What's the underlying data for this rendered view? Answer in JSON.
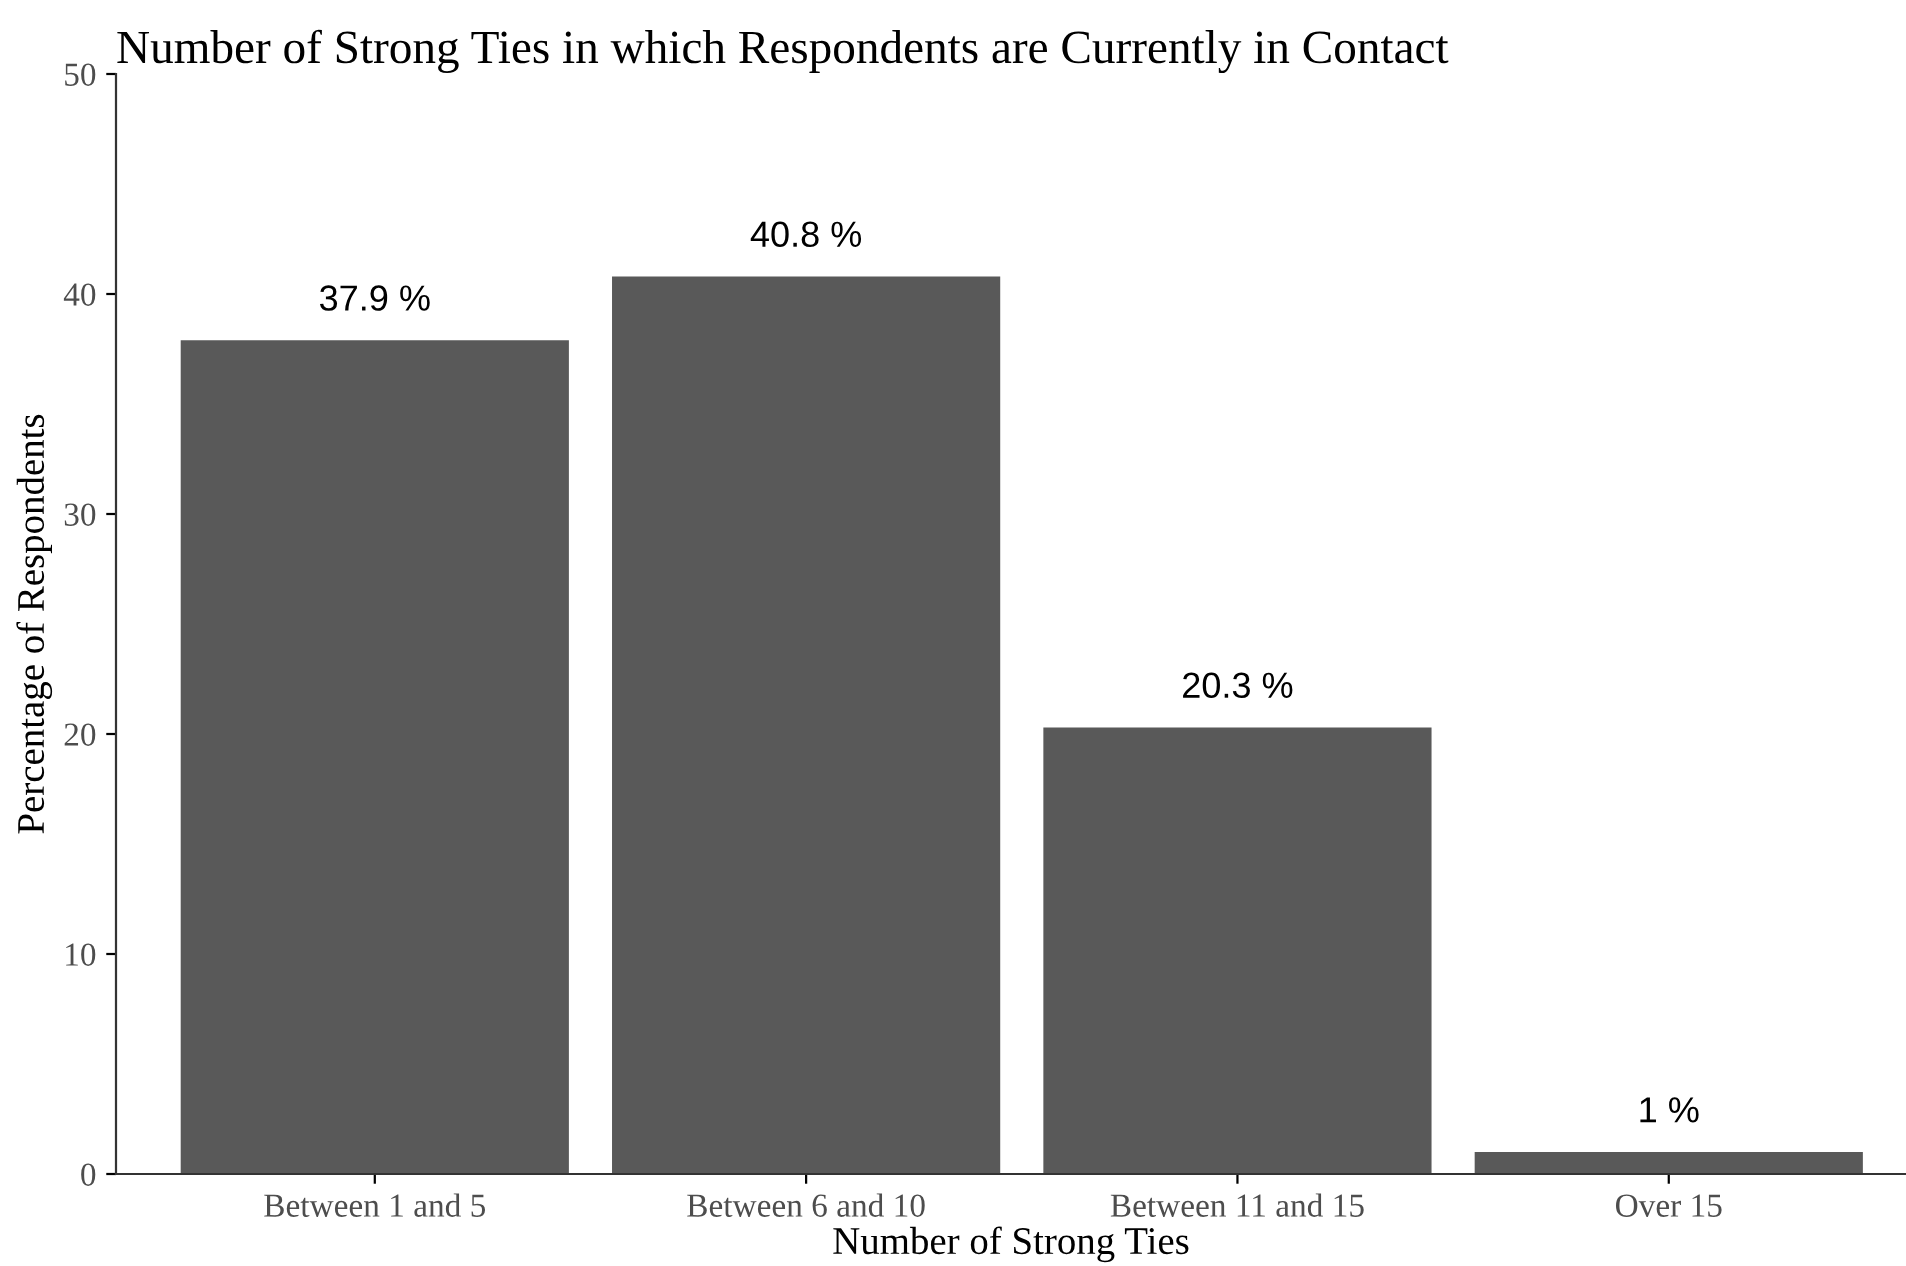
{
  "chart_data": {
    "type": "bar",
    "title": "Number of Strong Ties in which Respondents are Currently in Contact",
    "xlabel": "Number of Strong Ties",
    "ylabel": "Percentage of Respondents",
    "categories": [
      "Between 1 and 5",
      "Between 6 and 10",
      "Between 11 and 15",
      "Over 15"
    ],
    "values": [
      37.9,
      40.8,
      20.3,
      1
    ],
    "color": "#595959",
    "value_labels": [
      "37.9 %",
      "40.8 %",
      "20.3 %",
      "1 %"
    ],
    "ylim": [
      0,
      50
    ],
    "yticks": [
      0,
      10,
      20,
      30,
      40,
      50
    ],
    "grid": false,
    "legend": false
  }
}
